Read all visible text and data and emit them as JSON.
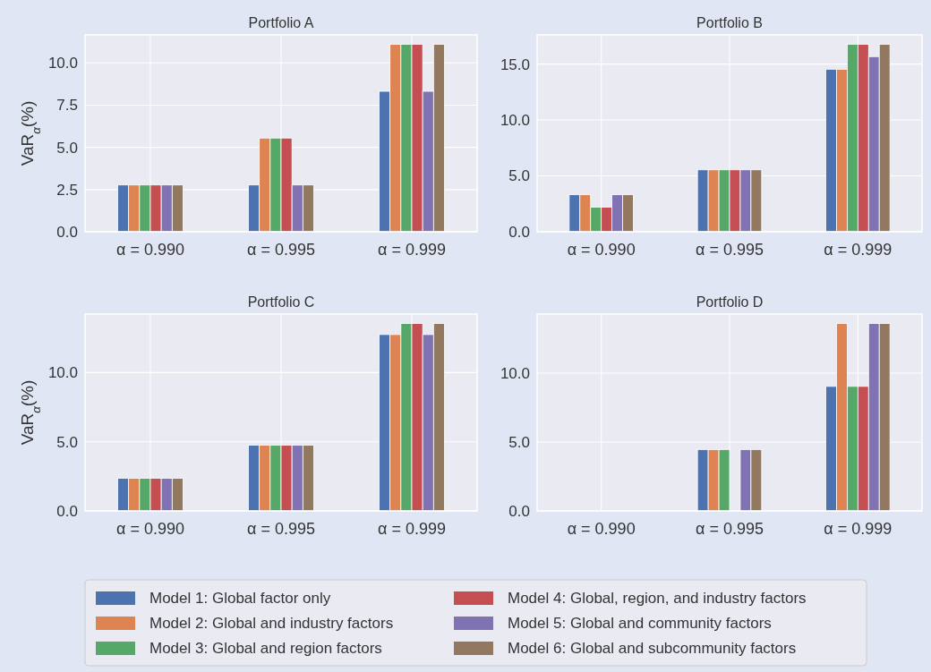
{
  "chart_data": [
    {
      "type": "bar",
      "title": "Portfolio A",
      "ylabel": "VaR$_{α}$(%)",
      "categories": [
        "α = 0.990",
        "α = 0.995",
        "α = 0.999"
      ],
      "ylim": [
        0,
        11.66
      ],
      "yticks": [
        {
          "value": 0,
          "label": "0.0"
        },
        {
          "value": 2.5,
          "label": "2.5"
        },
        {
          "value": 5,
          "label": "5.0"
        },
        {
          "value": 7.5,
          "label": "7.5"
        },
        {
          "value": 10,
          "label": "10.0"
        }
      ],
      "grid": true,
      "legend": "bottom",
      "series": [
        {
          "name": "Model 1: Global factor only",
          "color": "#4c72b0",
          "values": [
            2.77,
            2.77,
            8.32
          ]
        },
        {
          "name": "Model 2: Global and industry factors",
          "color": "#dd8452",
          "values": [
            2.77,
            5.55,
            11.1
          ]
        },
        {
          "name": "Model 3: Global and region factors",
          "color": "#55a868",
          "values": [
            2.77,
            5.55,
            11.1
          ]
        },
        {
          "name": "Model 4: Global, region, and industry factors",
          "color": "#c44e52",
          "values": [
            2.77,
            5.55,
            11.1
          ]
        },
        {
          "name": "Model 5: Global and community factors",
          "color": "#8172b3",
          "values": [
            2.77,
            2.77,
            8.32
          ]
        },
        {
          "name": "Model 6: Global and subcommunity factors",
          "color": "#937860",
          "values": [
            2.77,
            2.77,
            11.1
          ]
        }
      ]
    },
    {
      "type": "bar",
      "title": "Portfolio B",
      "categories": [
        "α = 0.990",
        "α = 0.995",
        "α = 0.999"
      ],
      "ylim": [
        0,
        17.61
      ],
      "yticks": [
        {
          "value": 0,
          "label": "0.0"
        },
        {
          "value": 5,
          "label": "5.0"
        },
        {
          "value": 10,
          "label": "10.0"
        },
        {
          "value": 15,
          "label": "15.0"
        }
      ],
      "grid": true,
      "series": [
        {
          "color": "#4c72b0",
          "values": [
            3.31,
            5.54,
            14.54
          ]
        },
        {
          "color": "#dd8452",
          "values": [
            3.31,
            5.54,
            14.54
          ]
        },
        {
          "color": "#55a868",
          "values": [
            2.2,
            5.54,
            16.77
          ]
        },
        {
          "color": "#c44e52",
          "values": [
            2.2,
            5.54,
            16.77
          ]
        },
        {
          "color": "#8172b3",
          "values": [
            3.31,
            5.54,
            15.67
          ]
        },
        {
          "color": "#937860",
          "values": [
            3.31,
            5.54,
            16.77
          ]
        }
      ]
    },
    {
      "type": "bar",
      "title": "Portfolio C",
      "ylabel": "VaR$_{α}$(%)",
      "categories": [
        "α = 0.990",
        "α = 0.995",
        "α = 0.999"
      ],
      "ylim": [
        0,
        14.23
      ],
      "yticks": [
        {
          "value": 0,
          "label": "0.0"
        },
        {
          "value": 5,
          "label": "5.0"
        },
        {
          "value": 10,
          "label": "10.0"
        }
      ],
      "grid": true,
      "series": [
        {
          "color": "#4c72b0",
          "values": [
            2.36,
            4.76,
            12.75
          ]
        },
        {
          "color": "#dd8452",
          "values": [
            2.36,
            4.76,
            12.75
          ]
        },
        {
          "color": "#55a868",
          "values": [
            2.36,
            4.76,
            13.55
          ]
        },
        {
          "color": "#c44e52",
          "values": [
            2.36,
            4.76,
            13.55
          ]
        },
        {
          "color": "#8172b3",
          "values": [
            2.36,
            4.76,
            12.75
          ]
        },
        {
          "color": "#937860",
          "values": [
            2.36,
            4.76,
            13.55
          ]
        }
      ]
    },
    {
      "type": "bar",
      "title": "Portfolio D",
      "categories": [
        "α = 0.990",
        "α = 0.995",
        "α = 0.999"
      ],
      "ylim": [
        0,
        14.29
      ],
      "yticks": [
        {
          "value": 0,
          "label": "0.0"
        },
        {
          "value": 5,
          "label": "5.0"
        },
        {
          "value": 10,
          "label": "10.0"
        }
      ],
      "grid": true,
      "series": [
        {
          "color": "#4c72b0",
          "values": [
            0,
            4.46,
            9.04
          ]
        },
        {
          "color": "#dd8452",
          "values": [
            0,
            4.46,
            13.61
          ]
        },
        {
          "color": "#55a868",
          "values": [
            0,
            4.46,
            9.04
          ]
        },
        {
          "color": "#c44e52",
          "values": [
            0,
            0,
            9.04
          ]
        },
        {
          "color": "#8172b3",
          "values": [
            0,
            4.46,
            13.61
          ]
        },
        {
          "color": "#937860",
          "values": [
            0,
            4.46,
            13.61
          ]
        }
      ]
    }
  ]
}
